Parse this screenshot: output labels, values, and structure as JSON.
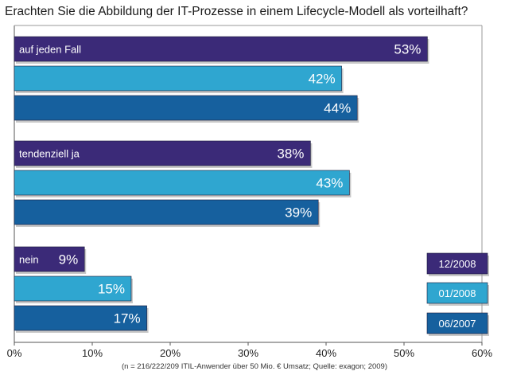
{
  "chart_data": {
    "type": "bar",
    "orientation": "horizontal",
    "title": "Erachten Sie die Abbildung der IT-Prozesse in einem Lifecycle-Modell als vorteilhaft?",
    "footnote": "(n = 216/222/209 ITIL-Anwender über 50 Mio. € Umsatz; Quelle: exagon; 2009)",
    "categories": [
      "auf jeden Fall",
      "tendenziell ja",
      "nein"
    ],
    "series": [
      {
        "name": "12/2008",
        "values": [
          53,
          38,
          9
        ],
        "color": "#3b2a78"
      },
      {
        "name": "01/2008",
        "values": [
          42,
          43,
          15
        ],
        "color": "#2fa6d0"
      },
      {
        "name": "06/2007",
        "values": [
          44,
          39,
          17
        ],
        "color": "#16609e"
      }
    ],
    "xlim": [
      0,
      60
    ],
    "xticks": [
      "0%",
      "10%",
      "20%",
      "30%",
      "40%",
      "50%",
      "60%"
    ],
    "value_suffix": "%",
    "grid": false,
    "legend_position": "bottom-right"
  }
}
